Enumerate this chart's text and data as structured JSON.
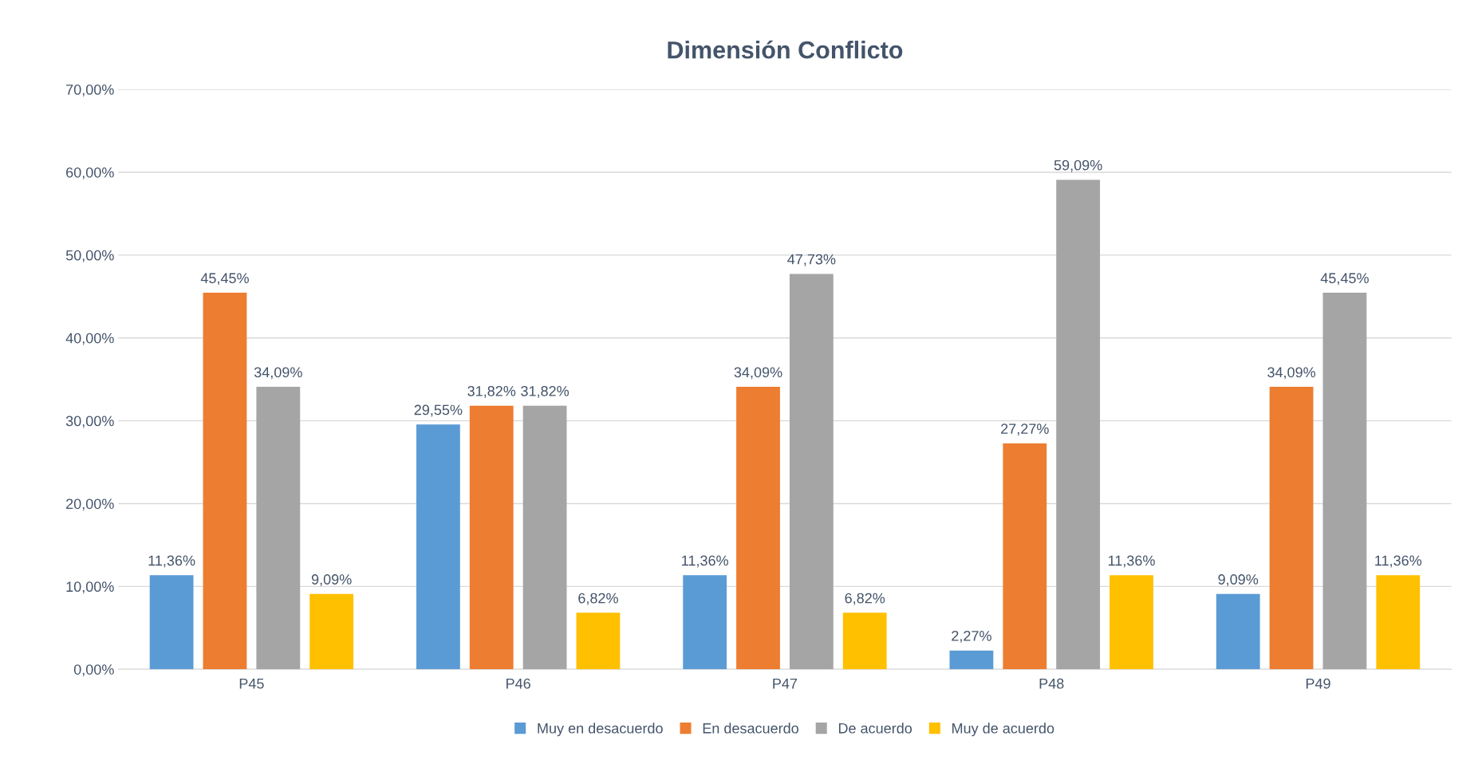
{
  "chart_data": {
    "type": "bar",
    "title": "Dimensión Conflicto",
    "categories": [
      "P45",
      "P46",
      "P47",
      "P48",
      "P49"
    ],
    "series": [
      {
        "name": "Muy en desacuerdo",
        "color": "#5b9bd5",
        "values": [
          11.36,
          29.55,
          11.36,
          2.27,
          9.09
        ],
        "value_labels": [
          "11,36%",
          "29,55%",
          "11,36%",
          "2,27%",
          "9,09%"
        ]
      },
      {
        "name": "En desacuerdo",
        "color": "#ed7d31",
        "values": [
          45.45,
          31.82,
          34.09,
          27.27,
          34.09
        ],
        "value_labels": [
          "45,45%",
          "31,82%",
          "34,09%",
          "27,27%",
          "34,09%"
        ]
      },
      {
        "name": "De acuerdo",
        "color": "#a5a5a5",
        "values": [
          34.09,
          31.82,
          47.73,
          59.09,
          45.45
        ],
        "value_labels": [
          "34,09%",
          "31,82%",
          "47,73%",
          "59,09%",
          "45,45%"
        ]
      },
      {
        "name": "Muy de acuerdo",
        "color": "#ffc000",
        "values": [
          9.09,
          6.82,
          6.82,
          11.36,
          11.36
        ],
        "value_labels": [
          "9,09%",
          "6,82%",
          "6,82%",
          "11,36%",
          "11,36%"
        ]
      }
    ],
    "ylim": [
      0,
      70
    ],
    "yticks": [
      {
        "value": 0,
        "label": "0,00%"
      },
      {
        "value": 10,
        "label": "10,00%"
      },
      {
        "value": 20,
        "label": "20,00%"
      },
      {
        "value": 30,
        "label": "30,00%"
      },
      {
        "value": 40,
        "label": "40,00%"
      },
      {
        "value": 50,
        "label": "50,00%"
      },
      {
        "value": 60,
        "label": "60,00%"
      },
      {
        "value": 70,
        "label": "70,00%"
      }
    ],
    "grid": "y",
    "legend": "bottom"
  }
}
